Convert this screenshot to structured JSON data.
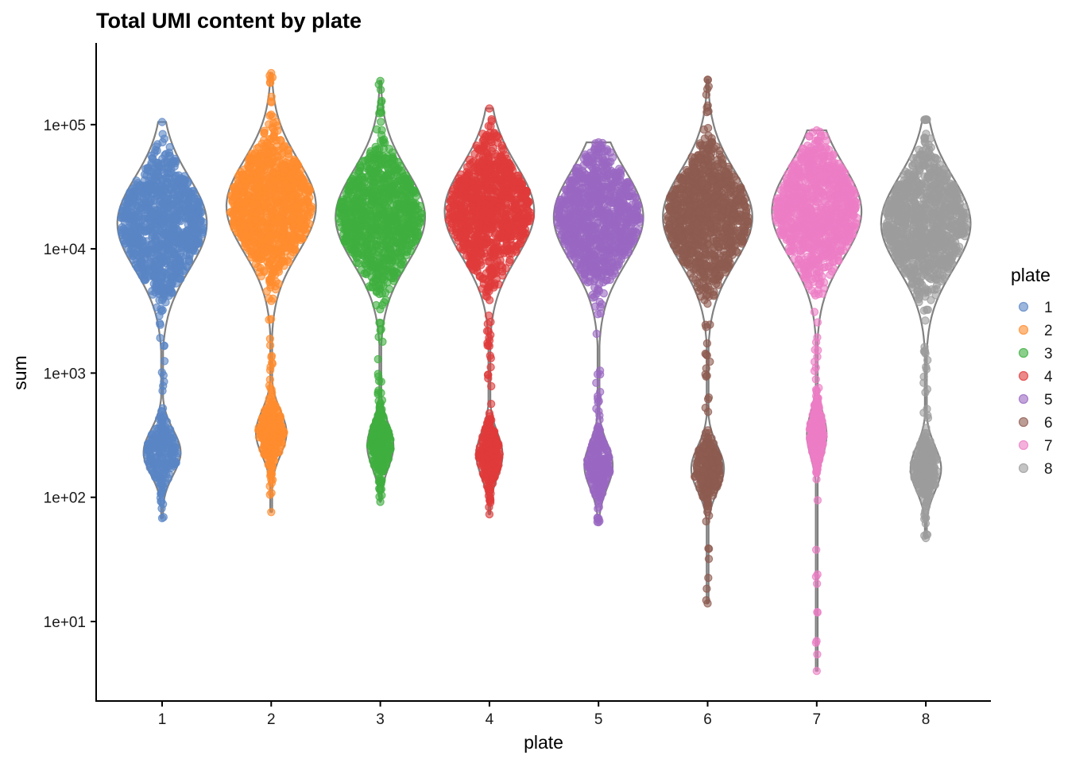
{
  "chart_data": {
    "type": "violin-beeswarm",
    "title": "Total UMI content by plate",
    "xlabel": "plate",
    "ylabel": "sum",
    "y_scale": "log10",
    "ylim": [
      2.5,
      500000
    ],
    "categories": [
      "1",
      "2",
      "3",
      "4",
      "5",
      "6",
      "7",
      "8"
    ],
    "y_ticks": [
      10,
      100,
      1000,
      10000,
      100000
    ],
    "y_tick_labels": [
      "1e+01",
      "1e+02",
      "1e+03",
      "1e+04",
      "1e+05"
    ],
    "legend": {
      "title": "plate",
      "position": "right",
      "entries": [
        "1",
        "2",
        "3",
        "4",
        "5",
        "6",
        "7",
        "8"
      ]
    },
    "grid": false,
    "violin_outline_color": "#808080",
    "point_alpha": 0.6,
    "series": [
      {
        "plate": "1",
        "color": "#5A86C5",
        "min": 68,
        "max": 105000,
        "upper_center": 16000,
        "upper_halfwidth": 0.41,
        "lower_center": 230,
        "lower_halfwidth": 0.17,
        "waist": 1500
      },
      {
        "plate": "2",
        "color": "#FF8C2E",
        "min": 76,
        "max": 260000,
        "upper_center": 22000,
        "upper_halfwidth": 0.41,
        "lower_center": 330,
        "lower_halfwidth": 0.14,
        "waist": 2500
      },
      {
        "plate": "3",
        "color": "#3FAF3F",
        "min": 92,
        "max": 225000,
        "upper_center": 18000,
        "upper_halfwidth": 0.41,
        "lower_center": 260,
        "lower_halfwidth": 0.12,
        "waist": 2000
      },
      {
        "plate": "4",
        "color": "#E03B3B",
        "min": 73,
        "max": 135000,
        "upper_center": 20000,
        "upper_halfwidth": 0.41,
        "lower_center": 220,
        "lower_halfwidth": 0.12,
        "waist": 1500
      },
      {
        "plate": "5",
        "color": "#9A68C1",
        "min": 63,
        "max": 72000,
        "upper_center": 18000,
        "upper_halfwidth": 0.41,
        "lower_center": 180,
        "lower_halfwidth": 0.13,
        "waist": 1200
      },
      {
        "plate": "6",
        "color": "#8E5B50",
        "min": 14,
        "max": 230000,
        "upper_center": 18000,
        "upper_halfwidth": 0.41,
        "lower_center": 170,
        "lower_halfwidth": 0.15,
        "waist": 1000
      },
      {
        "plate": "7",
        "color": "#EC7DC5",
        "min": 4,
        "max": 90000,
        "upper_center": 20000,
        "upper_halfwidth": 0.41,
        "lower_center": 320,
        "lower_halfwidth": 0.09,
        "waist": 2000
      },
      {
        "plate": "8",
        "color": "#9C9C9C",
        "min": 47,
        "max": 110000,
        "upper_center": 16000,
        "upper_halfwidth": 0.41,
        "lower_center": 170,
        "lower_halfwidth": 0.14,
        "waist": 1500
      }
    ]
  }
}
